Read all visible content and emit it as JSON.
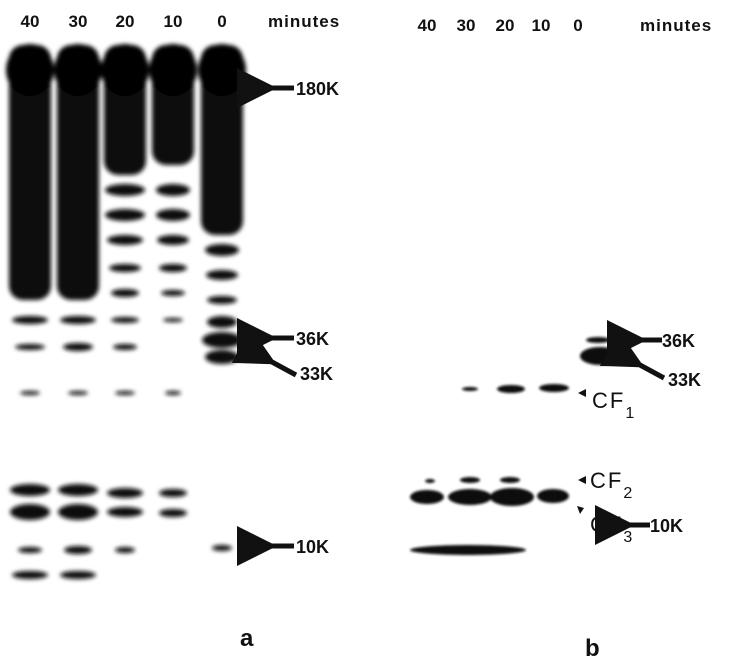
{
  "panel_a": {
    "lane_labels": [
      "40",
      "30",
      "20",
      "10",
      "0"
    ],
    "unit": "minutes",
    "markers": [
      "180K",
      "36K",
      "33K",
      "10K"
    ],
    "label": "a"
  },
  "panel_b": {
    "lane_labels": [
      "40",
      "30",
      "20",
      "10",
      "0"
    ],
    "unit": "minutes",
    "markers": [
      "36K",
      "33K",
      "10K"
    ],
    "subunits": [
      {
        "text": "CF",
        "subscript": "1"
      },
      {
        "text": "CF",
        "subscript": "2"
      },
      {
        "text": "CF",
        "subscript": "3"
      }
    ],
    "label": "b"
  }
}
